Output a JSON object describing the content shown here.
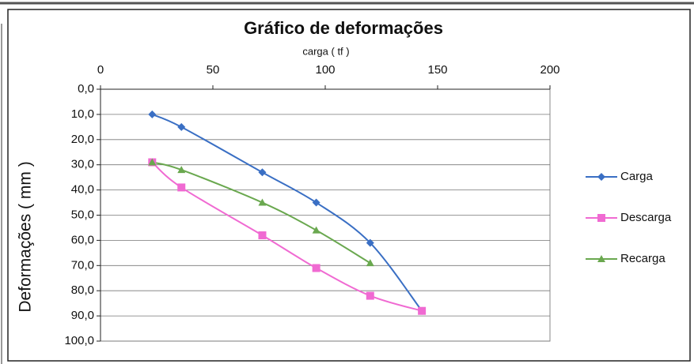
{
  "chart_data": {
    "type": "line",
    "title": "Gráfico de deformações",
    "xlabel": "carga ( tf )",
    "ylabel": "Deformações ( mm )",
    "xlim": [
      0,
      200
    ],
    "xticks": [
      0,
      50,
      100,
      150,
      200
    ],
    "xaxis_position": "top",
    "ylim": [
      0,
      100
    ],
    "y_inverted": true,
    "grid": true,
    "yticks": [
      {
        "value": 0,
        "label": "0,0"
      },
      {
        "value": 10,
        "label": "10,0"
      },
      {
        "value": 20,
        "label": "20,0"
      },
      {
        "value": 30,
        "label": "30,0"
      },
      {
        "value": 40,
        "label": "40,0"
      },
      {
        "value": 50,
        "label": "50,0"
      },
      {
        "value": 60,
        "label": "60,0"
      },
      {
        "value": 70,
        "label": "70,0"
      },
      {
        "value": 80,
        "label": "80,0"
      },
      {
        "value": 90,
        "label": "90,0"
      },
      {
        "value": 100,
        "label": "100,0"
      }
    ],
    "legend": "right",
    "series": [
      {
        "name": "Carga",
        "color": "#3a6fc4",
        "marker": "diamond",
        "x": [
          23,
          36,
          72,
          96,
          120,
          143
        ],
        "values": [
          10,
          15,
          33,
          45,
          61,
          88
        ]
      },
      {
        "name": "Descarga",
        "color": "#f06ad2",
        "marker": "square",
        "x": [
          23,
          36,
          72,
          96,
          120,
          143
        ],
        "values": [
          29,
          39,
          58,
          71,
          82,
          88
        ]
      },
      {
        "name": "Recarga",
        "color": "#6aa84f",
        "marker": "triangle",
        "x": [
          23,
          36,
          72,
          96,
          120
        ],
        "values": [
          29,
          32,
          45,
          56,
          69
        ]
      }
    ]
  }
}
